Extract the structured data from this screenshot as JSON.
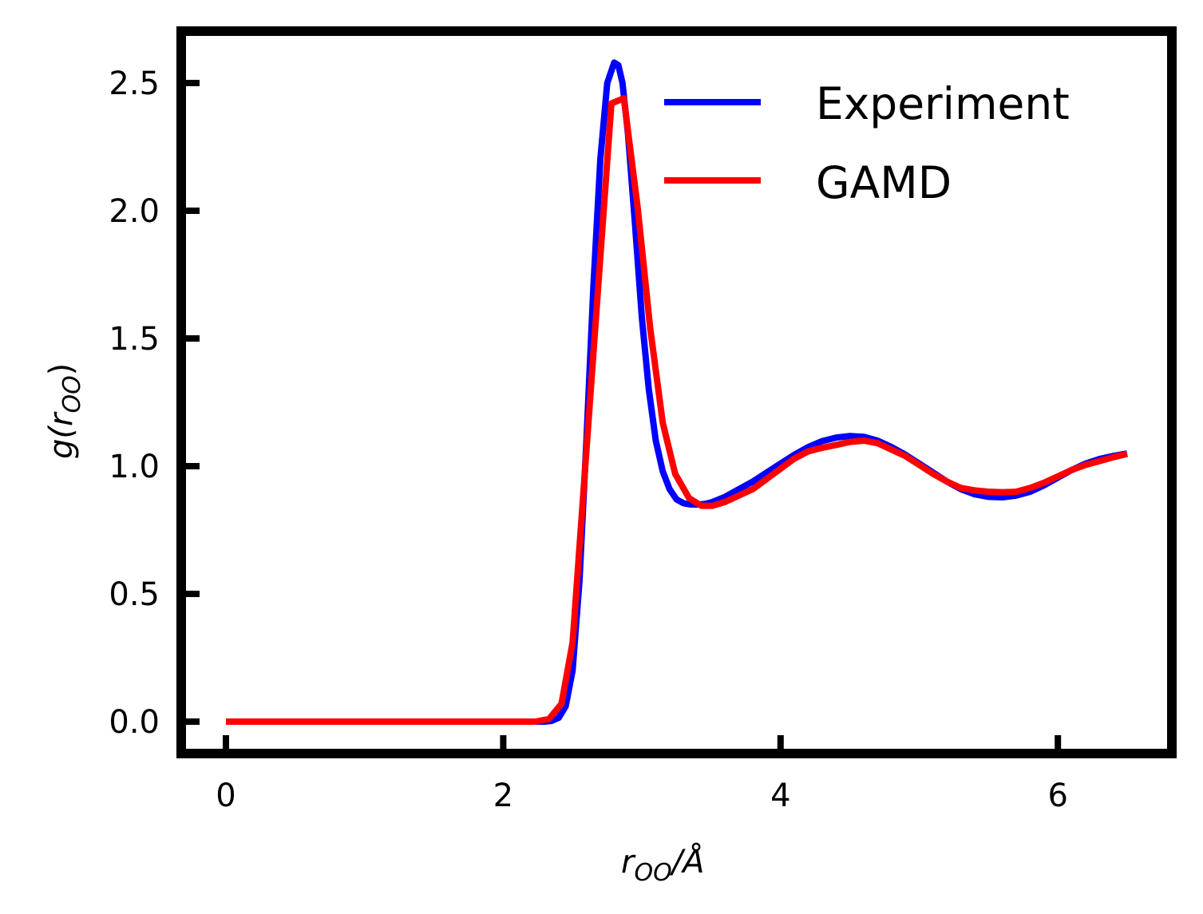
{
  "chart_data": {
    "type": "line",
    "title": "",
    "xlabel": "r_OO/Å",
    "ylabel": "g(r_OO)",
    "xlim": [
      -0.33,
      6.85
    ],
    "ylim": [
      -0.12,
      2.7
    ],
    "xticks": [
      0,
      2,
      4,
      6
    ],
    "xtick_labels": [
      "0",
      "2",
      "4",
      "6"
    ],
    "yticks": [
      0.0,
      0.5,
      1.0,
      1.5,
      2.0,
      2.5
    ],
    "ytick_labels": [
      "0.0",
      "0.5",
      "1.0",
      "1.5",
      "2.0",
      "2.5"
    ],
    "grid": false,
    "legend_position": "upper right",
    "series": [
      {
        "name": "Experiment",
        "color": "#0000ff",
        "x": [
          0.0,
          2.0,
          2.2,
          2.3,
          2.35,
          2.4,
          2.45,
          2.5,
          2.55,
          2.6,
          2.65,
          2.7,
          2.75,
          2.8,
          2.83,
          2.86,
          2.9,
          2.95,
          3.0,
          3.05,
          3.1,
          3.15,
          3.2,
          3.25,
          3.3,
          3.35,
          3.4,
          3.45,
          3.5,
          3.6,
          3.7,
          3.8,
          3.9,
          4.0,
          4.1,
          4.2,
          4.3,
          4.4,
          4.5,
          4.6,
          4.7,
          4.8,
          4.9,
          5.0,
          5.1,
          5.2,
          5.3,
          5.4,
          5.5,
          5.6,
          5.7,
          5.8,
          5.9,
          6.0,
          6.1,
          6.2,
          6.3,
          6.4,
          6.5
        ],
        "values": [
          0.0,
          0.0,
          0.0,
          0.0,
          0.003,
          0.015,
          0.06,
          0.2,
          0.55,
          1.1,
          1.7,
          2.2,
          2.5,
          2.58,
          2.57,
          2.5,
          2.3,
          1.95,
          1.58,
          1.3,
          1.1,
          0.98,
          0.91,
          0.87,
          0.855,
          0.85,
          0.85,
          0.852,
          0.858,
          0.88,
          0.91,
          0.94,
          0.975,
          1.01,
          1.045,
          1.075,
          1.098,
          1.112,
          1.118,
          1.115,
          1.1,
          1.075,
          1.045,
          1.01,
          0.975,
          0.94,
          0.91,
          0.89,
          0.88,
          0.878,
          0.885,
          0.9,
          0.925,
          0.955,
          0.985,
          1.01,
          1.028,
          1.04,
          1.05
        ]
      },
      {
        "name": "GAMD",
        "color": "#ff0000",
        "x": [
          0.0,
          2.23,
          2.33,
          2.42,
          2.5,
          2.78,
          2.87,
          2.97,
          3.06,
          3.15,
          3.24,
          3.34,
          3.43,
          3.51,
          3.6,
          3.7,
          3.8,
          3.9,
          4.0,
          4.1,
          4.2,
          4.3,
          4.4,
          4.5,
          4.6,
          4.7,
          4.8,
          4.9,
          5.0,
          5.1,
          5.2,
          5.3,
          5.4,
          5.5,
          5.6,
          5.7,
          5.8,
          5.9,
          6.0,
          6.1,
          6.2,
          6.3,
          6.4,
          6.5
        ],
        "values": [
          0.0,
          0.0,
          0.01,
          0.07,
          0.31,
          2.42,
          2.44,
          2.01,
          1.54,
          1.17,
          0.97,
          0.875,
          0.845,
          0.845,
          0.86,
          0.885,
          0.91,
          0.95,
          0.99,
          1.03,
          1.058,
          1.072,
          1.083,
          1.095,
          1.1,
          1.09,
          1.065,
          1.04,
          1.005,
          0.97,
          0.94,
          0.915,
          0.905,
          0.9,
          0.898,
          0.9,
          0.915,
          0.935,
          0.96,
          0.985,
          1.005,
          1.02,
          1.035,
          1.048
        ]
      }
    ]
  },
  "legend": {
    "items": [
      {
        "label": "Experiment",
        "color": "#0000ff"
      },
      {
        "label": "GAMD",
        "color": "#ff0000"
      }
    ]
  },
  "axes": {
    "xlabel_main": "r",
    "xlabel_sub": "OO",
    "xlabel_unit": "/Å",
    "ylabel_main": "g(r",
    "ylabel_sub": "OO",
    "ylabel_close": ")"
  }
}
